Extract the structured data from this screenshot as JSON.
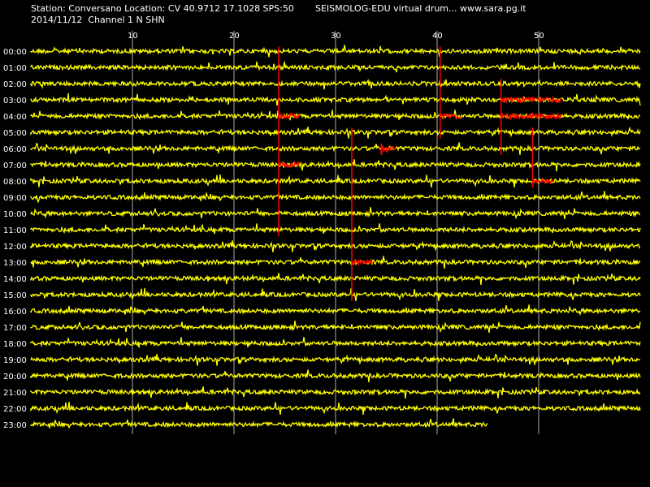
{
  "header": {
    "station": "Station: Conversano Location: CV 40.9712 17.1028 SPS:50",
    "date_channel": "2014/11/12  Channel 1 N SHN",
    "software": "SEISMOLOG-EDU virtual drum... www.sara.pg.it"
  },
  "colors": {
    "background": "#000000",
    "trace": "#ffff00",
    "event": "#ff0000",
    "grid": "#aaaaaa",
    "text": "#ffffff"
  },
  "chart_data": {
    "type": "line",
    "title": "",
    "xlabel": "",
    "ylabel": "",
    "x_ticks": [
      10,
      20,
      30,
      40,
      50
    ],
    "xlim": [
      0,
      60
    ],
    "grid": true,
    "hour_labels": [
      "00:00",
      "01:00",
      "02:00",
      "03:00",
      "04:00",
      "05:00",
      "06:00",
      "07:00",
      "08:00",
      "09:00",
      "10:00",
      "11:00",
      "12:00",
      "13:00",
      "14:00",
      "15:00",
      "16:00",
      "17:00",
      "18:00",
      "19:00",
      "20:00",
      "21:00",
      "22:00",
      "23:00"
    ],
    "trace_end_minute_last_row": 45,
    "events": [
      {
        "minute": 24.4,
        "row_top": 0,
        "row_bottom": 11,
        "burst_rows": [
          4,
          7
        ],
        "burst_len_min": 2
      },
      {
        "minute": 40.3,
        "row_top": 0,
        "row_bottom": 5,
        "burst_rows": [
          4
        ],
        "burst_len_min": 2
      },
      {
        "minute": 31.6,
        "row_top": 5,
        "row_bottom": 15,
        "burst_rows": [
          13
        ],
        "burst_len_min": 2
      },
      {
        "minute": 34.5,
        "row_top": 6,
        "row_bottom": 6,
        "burst_rows": [
          6
        ],
        "burst_len_min": 1.5,
        "strong": true
      },
      {
        "minute": 46.3,
        "row_top": 2,
        "row_bottom": 6,
        "burst_rows": [
          3,
          4
        ],
        "burst_len_min": 6
      },
      {
        "minute": 49.4,
        "row_top": 5,
        "row_bottom": 8,
        "burst_rows": [
          8
        ],
        "burst_len_min": 2
      }
    ]
  }
}
